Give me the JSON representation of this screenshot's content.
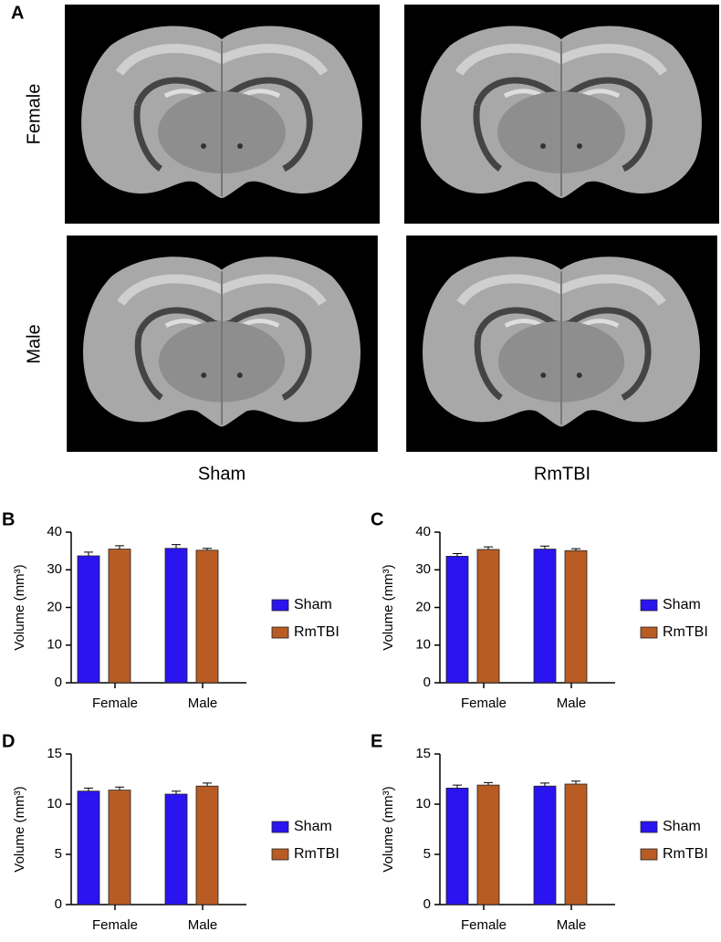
{
  "figure_a": {
    "panel": "A",
    "rows": [
      "Female",
      "Male"
    ],
    "columns": [
      "Sham",
      "RmTBI"
    ]
  },
  "chart_data": [
    {
      "type": "bar",
      "panel": "B",
      "ylabel": "Volume (mm³)",
      "categories": [
        "Female",
        "Male"
      ],
      "series": [
        {
          "name": "Sham",
          "color": "#2a14f0",
          "values": [
            33.7,
            35.7
          ],
          "errors": [
            1.0,
            1.0
          ]
        },
        {
          "name": "RmTBI",
          "color": "#b85c24",
          "values": [
            35.5,
            35.2
          ],
          "errors": [
            0.9,
            0.5
          ]
        }
      ],
      "ylim": [
        0,
        40
      ],
      "yticks": [
        0,
        10,
        20,
        30,
        40
      ]
    },
    {
      "type": "bar",
      "panel": "C",
      "ylabel": "Volume (mm³)",
      "categories": [
        "Female",
        "Male"
      ],
      "series": [
        {
          "name": "Sham",
          "color": "#2a14f0",
          "values": [
            33.6,
            35.5
          ],
          "errors": [
            0.7,
            0.8
          ]
        },
        {
          "name": "RmTBI",
          "color": "#b85c24",
          "values": [
            35.4,
            35.1
          ],
          "errors": [
            0.7,
            0.5
          ]
        }
      ],
      "ylim": [
        0,
        40
      ],
      "yticks": [
        0,
        10,
        20,
        30,
        40
      ]
    },
    {
      "type": "bar",
      "panel": "D",
      "ylabel": "Volume (mm³)",
      "categories": [
        "Female",
        "Male"
      ],
      "series": [
        {
          "name": "Sham",
          "color": "#2a14f0",
          "values": [
            11.3,
            11.0
          ],
          "errors": [
            0.3,
            0.3
          ]
        },
        {
          "name": "RmTBI",
          "color": "#b85c24",
          "values": [
            11.4,
            11.8
          ],
          "errors": [
            0.3,
            0.3
          ]
        }
      ],
      "ylim": [
        0,
        15
      ],
      "yticks": [
        0,
        5,
        10,
        15
      ]
    },
    {
      "type": "bar",
      "panel": "E",
      "ylabel": "Volume (mm³)",
      "categories": [
        "Female",
        "Male"
      ],
      "series": [
        {
          "name": "Sham",
          "color": "#2a14f0",
          "values": [
            11.6,
            11.8
          ],
          "errors": [
            0.3,
            0.3
          ]
        },
        {
          "name": "RmTBI",
          "color": "#b85c24",
          "values": [
            11.9,
            12.0
          ],
          "errors": [
            0.25,
            0.3
          ]
        }
      ],
      "ylim": [
        0,
        15
      ],
      "yticks": [
        0,
        5,
        10,
        15
      ]
    }
  ]
}
